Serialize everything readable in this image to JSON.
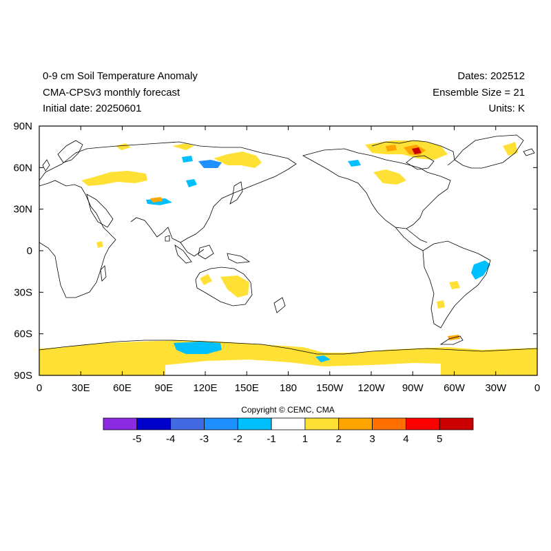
{
  "title": {
    "left": [
      "0-9 cm Soil Temperature Anomaly",
      "CMA-CPSv3 monthly forecast",
      "Initial date: 20250601"
    ],
    "right": [
      "Dates: 202512",
      "Ensemble Size = 21",
      "Units: K"
    ]
  },
  "axes": {
    "x_ticks": [
      {
        "lon": 0,
        "label": "0"
      },
      {
        "lon": 30,
        "label": "30E"
      },
      {
        "lon": 60,
        "label": "60E"
      },
      {
        "lon": 90,
        "label": "90E"
      },
      {
        "lon": 120,
        "label": "120E"
      },
      {
        "lon": 150,
        "label": "150E"
      },
      {
        "lon": 180,
        "label": "180"
      },
      {
        "lon": 210,
        "label": "150W"
      },
      {
        "lon": 240,
        "label": "120W"
      },
      {
        "lon": 270,
        "label": "90W"
      },
      {
        "lon": 300,
        "label": "60W"
      },
      {
        "lon": 330,
        "label": "30W"
      },
      {
        "lon": 360,
        "label": "0"
      }
    ],
    "y_ticks": [
      {
        "lat": 90,
        "label": "90N"
      },
      {
        "lat": 60,
        "label": "60N"
      },
      {
        "lat": 30,
        "label": "30N"
      },
      {
        "lat": 0,
        "label": "0"
      },
      {
        "lat": -30,
        "label": "30S"
      },
      {
        "lat": -60,
        "label": "60S"
      },
      {
        "lat": -90,
        "label": "90S"
      }
    ],
    "lon_range": [
      0,
      360
    ],
    "lat_range": [
      -90,
      90
    ]
  },
  "copyright": "Copyright © CEMC, CMA",
  "colorbar": {
    "colors": [
      "#8a2be2",
      "#0000cd",
      "#4169e1",
      "#1e90ff",
      "#00bfff",
      "#ffffff",
      "#ffe135",
      "#ffa500",
      "#ff7000",
      "#ff0000",
      "#cc0000"
    ],
    "labels": [
      "-5",
      "-4",
      "-3",
      "-2",
      "-1",
      "1",
      "2",
      "3",
      "4",
      "5"
    ]
  },
  "colors": {
    "yellow": "#ffe135",
    "orange": "#ffa500",
    "red": "#cc0000",
    "lightblue": "#00bfff",
    "blue": "#1e90ff",
    "darkblue": "#4169e1"
  }
}
